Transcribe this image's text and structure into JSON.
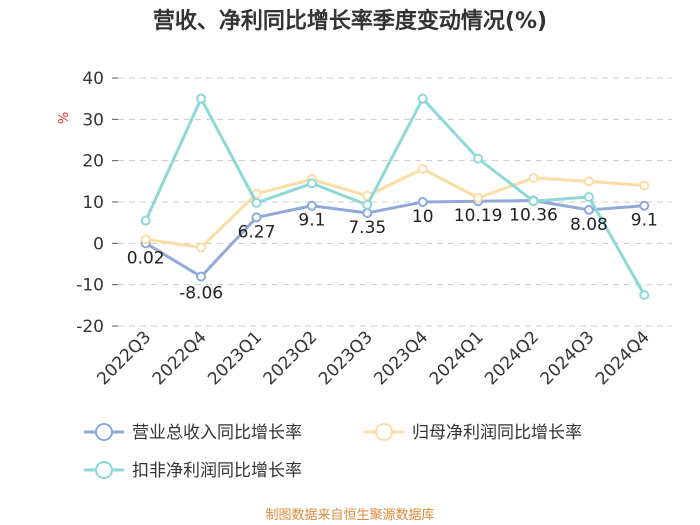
{
  "chart_data": {
    "type": "line",
    "title": "营收、净利同比增长率季度变动情况(%)",
    "ylabel": "%",
    "xlabel": "",
    "ylim": [
      -20,
      40
    ],
    "yticks": [
      40,
      30,
      20,
      10,
      0,
      -10,
      -20
    ],
    "categories": [
      "2022Q3",
      "2022Q4",
      "2023Q1",
      "2023Q2",
      "2023Q3",
      "2023Q4",
      "2024Q1",
      "2024Q2",
      "2024Q3",
      "2024Q4"
    ],
    "series": [
      {
        "name": "营业总收入同比增长率",
        "color": "#8fa9d8",
        "values": [
          0.02,
          -8.06,
          6.27,
          9.1,
          7.35,
          10,
          10.19,
          10.36,
          8.08,
          9.1
        ],
        "labels": [
          "0.02",
          "-8.06",
          "6.27",
          "9.1",
          "7.35",
          "10",
          "10.19",
          "10.36",
          "8.08",
          "9.1"
        ]
      },
      {
        "name": "归母净利润同比增长率",
        "color": "#fbdca4",
        "values": [
          1.0,
          -1.0,
          12.0,
          15.5,
          11.5,
          18.0,
          11.0,
          15.8,
          15.0,
          14.0
        ]
      },
      {
        "name": "扣非净利润同比增长率",
        "color": "#8dd8d8",
        "values": [
          5.5,
          35.0,
          9.8,
          14.5,
          9.3,
          35.0,
          20.5,
          10.2,
          11.2,
          -12.5
        ]
      }
    ],
    "grid": true,
    "legend_position": "bottom"
  },
  "source": "制图数据来自恒生聚源数据库"
}
